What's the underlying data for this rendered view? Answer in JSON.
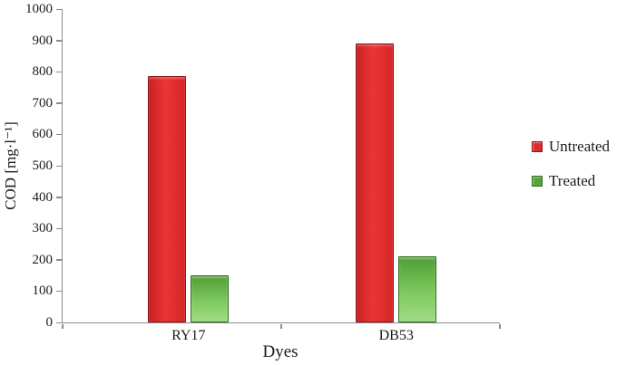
{
  "chart_data": {
    "type": "bar",
    "categories": [
      "RY17",
      "DB53"
    ],
    "series": [
      {
        "name": "Untreated",
        "color": "#e02b2b",
        "border_color": "#8e1414",
        "values": [
          785,
          890
        ]
      },
      {
        "name": "Treated",
        "color": "#6abf4b",
        "border_color": "#2f6b1d",
        "values": [
          150,
          210
        ]
      }
    ],
    "title": "",
    "xlabel": "Dyes",
    "ylabel": "COD [mg·l⁻¹]",
    "ylim": [
      0,
      1000
    ],
    "ytick_step": 100,
    "grid": false,
    "legend_position": "right"
  }
}
